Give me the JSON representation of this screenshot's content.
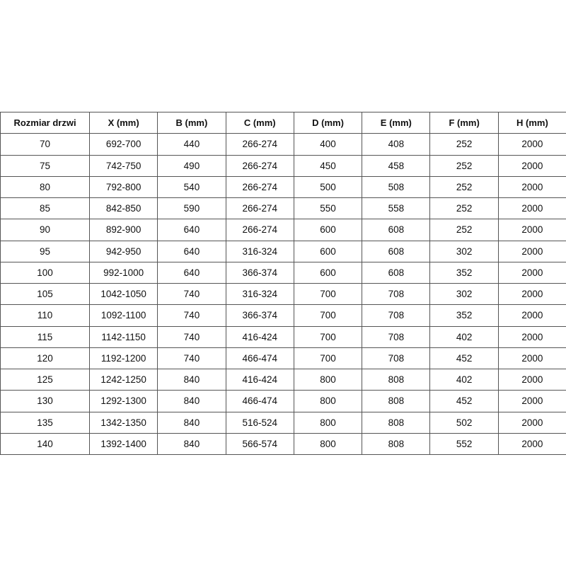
{
  "table": {
    "headers": [
      "Rozmiar drzwi",
      "X (mm)",
      "B (mm)",
      "C (mm)",
      "D (mm)",
      "E (mm)",
      "F (mm)",
      "H (mm)"
    ],
    "rows": [
      [
        "70",
        "692-700",
        "440",
        "266-274",
        "400",
        "408",
        "252",
        "2000"
      ],
      [
        "75",
        "742-750",
        "490",
        "266-274",
        "450",
        "458",
        "252",
        "2000"
      ],
      [
        "80",
        "792-800",
        "540",
        "266-274",
        "500",
        "508",
        "252",
        "2000"
      ],
      [
        "85",
        "842-850",
        "590",
        "266-274",
        "550",
        "558",
        "252",
        "2000"
      ],
      [
        "90",
        "892-900",
        "640",
        "266-274",
        "600",
        "608",
        "252",
        "2000"
      ],
      [
        "95",
        "942-950",
        "640",
        "316-324",
        "600",
        "608",
        "302",
        "2000"
      ],
      [
        "100",
        "992-1000",
        "640",
        "366-374",
        "600",
        "608",
        "352",
        "2000"
      ],
      [
        "105",
        "1042-1050",
        "740",
        "316-324",
        "700",
        "708",
        "302",
        "2000"
      ],
      [
        "110",
        "1092-1100",
        "740",
        "366-374",
        "700",
        "708",
        "352",
        "2000"
      ],
      [
        "115",
        "1142-1150",
        "740",
        "416-424",
        "700",
        "708",
        "402",
        "2000"
      ],
      [
        "120",
        "1192-1200",
        "740",
        "466-474",
        "700",
        "708",
        "452",
        "2000"
      ],
      [
        "125",
        "1242-1250",
        "840",
        "416-424",
        "800",
        "808",
        "402",
        "2000"
      ],
      [
        "130",
        "1292-1300",
        "840",
        "466-474",
        "800",
        "808",
        "452",
        "2000"
      ],
      [
        "135",
        "1342-1350",
        "840",
        "516-524",
        "800",
        "808",
        "502",
        "2000"
      ],
      [
        "140",
        "1392-1400",
        "840",
        "566-574",
        "800",
        "808",
        "552",
        "2000"
      ]
    ]
  }
}
